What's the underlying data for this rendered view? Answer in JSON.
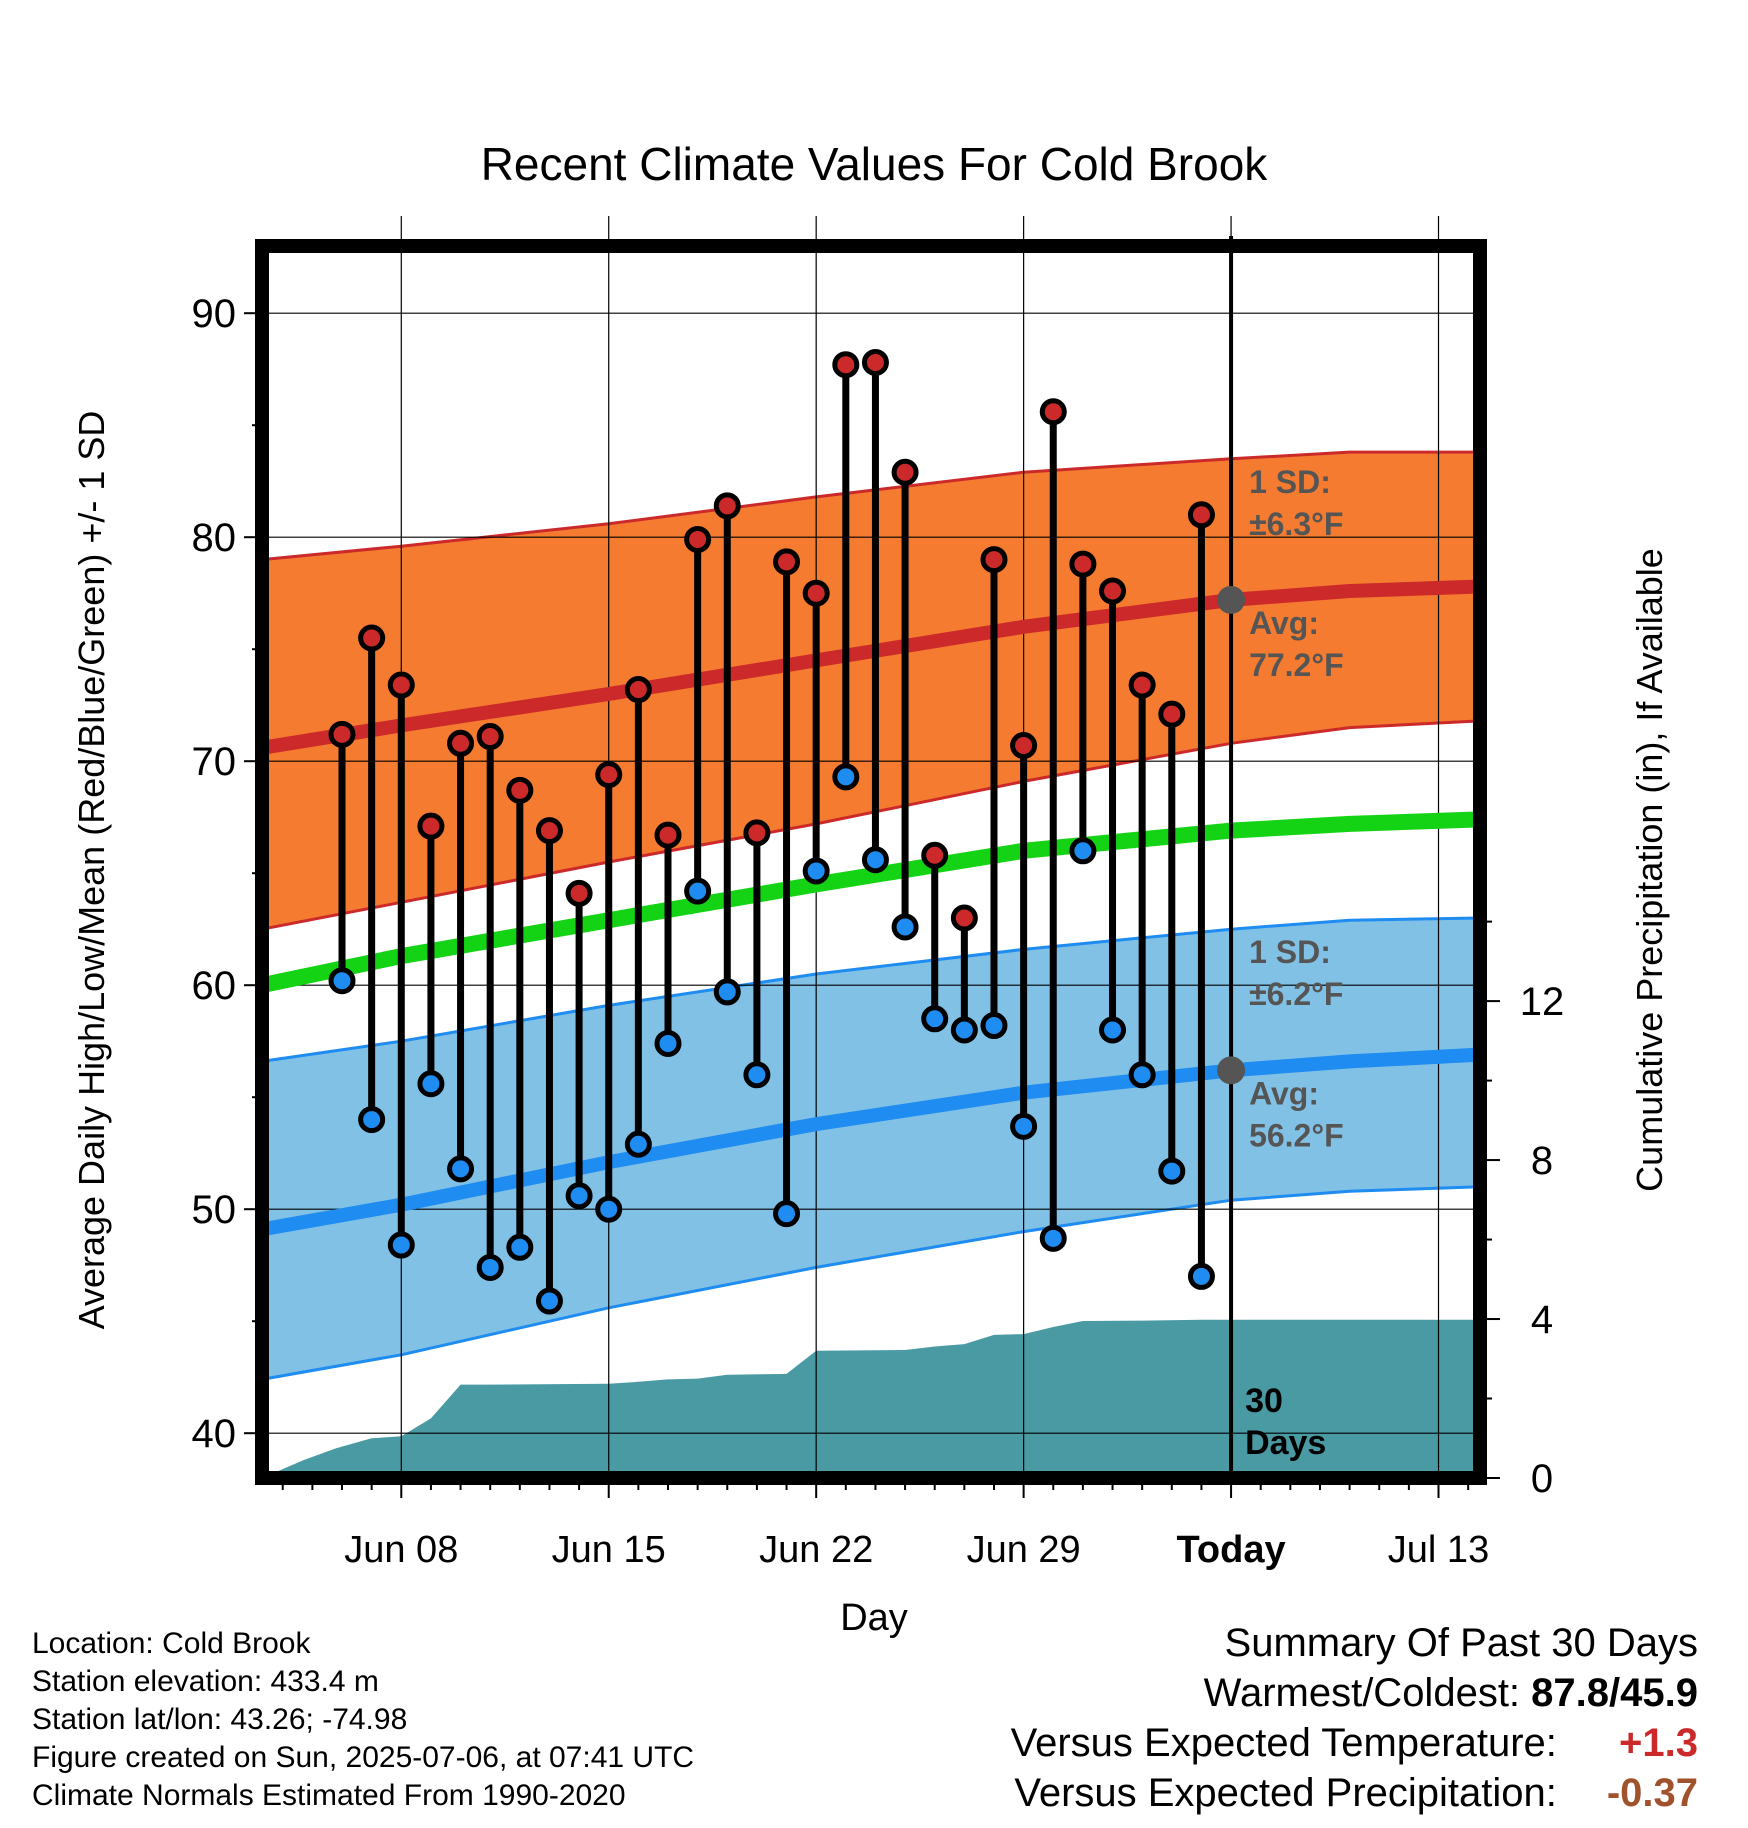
{
  "chart_data": {
    "type": "line",
    "title": "Recent Climate Values For Cold Brook",
    "xlabel": "Day",
    "ylabel_left": "Average Daily High/Low/Mean (Red/Blue/Green) +/- 1 SD",
    "ylabel_right": "Cumulative Precipitation (in), If Available",
    "ylim_left": [
      38,
      93
    ],
    "ylim_right": [
      0,
      31
    ],
    "x_day_range": [
      -32.7,
      8.4
    ],
    "left_ticks": [
      40,
      50,
      60,
      70,
      80,
      90
    ],
    "right_ticks": [
      0,
      4,
      8,
      12
    ],
    "x_ticks": [
      {
        "day": -28,
        "label": "Jun 08"
      },
      {
        "day": -21,
        "label": "Jun 15"
      },
      {
        "day": -14,
        "label": "Jun 22"
      },
      {
        "day": -7,
        "label": "Jun 29"
      },
      {
        "day": 0,
        "label": "Today"
      },
      {
        "day": 7,
        "label": "Jul 13"
      }
    ],
    "normals": {
      "high_avg": [
        [
          -32.7,
          70.6
        ],
        [
          -28,
          71.6
        ],
        [
          -21,
          73.0
        ],
        [
          -14,
          74.5
        ],
        [
          -7,
          76.0
        ],
        [
          0,
          77.2
        ],
        [
          4,
          77.6
        ],
        [
          8.4,
          77.8
        ]
      ],
      "high_upper": [
        [
          -32.7,
          79.0
        ],
        [
          -28,
          79.6
        ],
        [
          -21,
          80.6
        ],
        [
          -14,
          81.8
        ],
        [
          -7,
          82.9
        ],
        [
          0,
          83.5
        ],
        [
          4,
          83.8
        ],
        [
          8.4,
          83.8
        ]
      ],
      "high_lower": [
        [
          -32.7,
          62.5
        ],
        [
          -28,
          63.7
        ],
        [
          -21,
          65.5
        ],
        [
          -14,
          67.2
        ],
        [
          -7,
          69.1
        ],
        [
          0,
          70.8
        ],
        [
          4,
          71.5
        ],
        [
          8.4,
          71.8
        ]
      ],
      "low_avg": [
        [
          -32.7,
          49.1
        ],
        [
          -28,
          50.2
        ],
        [
          -21,
          52.1
        ],
        [
          -14,
          53.8
        ],
        [
          -7,
          55.2
        ],
        [
          0,
          56.2
        ],
        [
          4,
          56.6
        ],
        [
          8.4,
          56.9
        ]
      ],
      "low_upper": [
        [
          -32.7,
          56.6
        ],
        [
          -28,
          57.5
        ],
        [
          -21,
          59.1
        ],
        [
          -14,
          60.5
        ],
        [
          -7,
          61.6
        ],
        [
          0,
          62.5
        ],
        [
          4,
          62.9
        ],
        [
          8.4,
          63.0
        ]
      ],
      "low_lower": [
        [
          -32.7,
          42.4
        ],
        [
          -28,
          43.5
        ],
        [
          -21,
          45.6
        ],
        [
          -14,
          47.4
        ],
        [
          -7,
          49.0
        ],
        [
          0,
          50.4
        ],
        [
          4,
          50.8
        ],
        [
          8.4,
          51.0
        ]
      ],
      "mean_avg": [
        [
          -32.7,
          60.0
        ],
        [
          -28,
          61.3
        ],
        [
          -21,
          62.9
        ],
        [
          -14,
          64.5
        ],
        [
          -7,
          66.0
        ],
        [
          0,
          66.9
        ],
        [
          4,
          67.2
        ],
        [
          8.4,
          67.4
        ]
      ]
    },
    "series": [
      {
        "name": "High",
        "values": [
          71.2,
          75.5,
          73.4,
          67.1,
          70.8,
          71.1,
          68.7,
          66.9,
          64.1,
          69.4,
          73.2,
          66.7,
          79.9,
          81.4,
          66.8,
          78.9,
          77.5,
          87.7,
          87.8,
          82.9,
          65.8,
          63.0,
          79.0,
          70.7,
          85.6,
          78.8,
          77.6,
          73.4,
          72.1,
          81.0
        ]
      },
      {
        "name": "Low",
        "values": [
          60.2,
          54.0,
          48.4,
          55.6,
          51.8,
          47.4,
          48.3,
          45.9,
          50.6,
          50.0,
          52.9,
          57.4,
          64.2,
          59.7,
          56.0,
          49.8,
          65.1,
          69.3,
          65.6,
          62.6,
          58.5,
          58.0,
          58.2,
          53.7,
          48.7,
          66.0,
          58.0,
          56.0,
          51.7,
          47.0
        ]
      }
    ],
    "days": [
      -30,
      -29,
      -28,
      -27,
      -26,
      -25,
      -24,
      -23,
      -22,
      -21,
      -20,
      -19,
      -18,
      -17,
      -16,
      -15,
      -14,
      -13,
      -12,
      -11,
      -10,
      -9,
      -8,
      -7,
      -6,
      -5,
      -4,
      -3,
      -2,
      -1
    ],
    "precip_cumulative": [
      [
        -32.7,
        0.0
      ],
      [
        -31.3,
        0.45
      ],
      [
        -30.2,
        0.75
      ],
      [
        -29,
        1.0
      ],
      [
        -28,
        1.05
      ],
      [
        -27,
        1.5
      ],
      [
        -26,
        2.35
      ],
      [
        -25,
        2.35
      ],
      [
        -21,
        2.37
      ],
      [
        -20,
        2.42
      ],
      [
        -19,
        2.48
      ],
      [
        -18,
        2.5
      ],
      [
        -17,
        2.6
      ],
      [
        -15,
        2.62
      ],
      [
        -14,
        3.2
      ],
      [
        -11,
        3.22
      ],
      [
        -10,
        3.31
      ],
      [
        -9,
        3.37
      ],
      [
        -8,
        3.6
      ],
      [
        -7,
        3.62
      ],
      [
        -6,
        3.8
      ],
      [
        -5,
        3.95
      ],
      [
        -3,
        3.96
      ],
      [
        -1,
        3.98
      ],
      [
        8.4,
        3.98
      ]
    ],
    "today_markers": [
      {
        "label": "1 SD:",
        "value": "±6.3°F"
      },
      {
        "label": "Avg:",
        "value": "77.2°F"
      },
      {
        "label": "1 SD:",
        "value": "±6.2°F"
      },
      {
        "label": "Avg:",
        "value": "56.2°F"
      }
    ],
    "days_window_label": "30 Days"
  },
  "info": {
    "location": "Location: Cold Brook",
    "elevation": "Station elevation: 433.4 m",
    "latlon": "Station lat/lon: 43.26; -74.98",
    "created": "Figure created on Sun, 2025-07-06, at 07:41 UTC",
    "normals": "Climate Normals Estimated From 1990-2020"
  },
  "summary": {
    "title": "Summary Of Past 30 Days",
    "warm_cold_label": "Warmest/Coldest:",
    "warm_cold_value": "87.8/45.9",
    "temp_label": "Versus Expected Temperature:",
    "temp_value": "+1.3",
    "precip_label": "Versus Expected Precipitation:",
    "precip_value": "-0.37"
  },
  "colors": {
    "high_band": "#f47b2f",
    "high_line": "#cc2a2a",
    "low_band": "#82c1e6",
    "low_line": "#1e8cf0",
    "mean_line": "#14d214",
    "precip_fill": "#4a9aa4",
    "dot_high": "#cc2a2a",
    "dot_low": "#1e8cf0",
    "marker_gray": "#555555",
    "temp_diff": "#cc2a2a",
    "precip_diff": "#a0522d"
  }
}
